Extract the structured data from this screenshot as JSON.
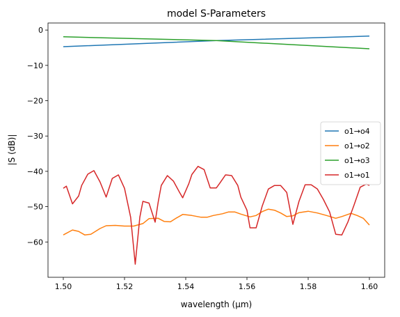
{
  "chart_data": {
    "type": "line",
    "title": "model S-Parameters",
    "xlabel": "wavelength (µm)",
    "ylabel": "|S (dB)|",
    "xlim": [
      1.495,
      1.605
    ],
    "ylim": [
      -70,
      2
    ],
    "xticks": [
      1.5,
      1.52,
      1.54,
      1.56,
      1.58,
      1.6
    ],
    "xtick_labels": [
      "1.50",
      "1.52",
      "1.54",
      "1.56",
      "1.58",
      "1.60"
    ],
    "yticks": [
      0,
      -10,
      -20,
      -30,
      -40,
      -50,
      -60
    ],
    "ytick_labels": [
      "0",
      "−10",
      "−20",
      "−30",
      "−40",
      "−50",
      "−60"
    ],
    "grid": false,
    "legend": "center-right",
    "series": [
      {
        "name": "o1→o4",
        "color": "#1f77b4",
        "points": [
          [
            1.5,
            -4.7
          ],
          [
            1.55,
            -3.0
          ],
          [
            1.6,
            -1.7
          ]
        ]
      },
      {
        "name": "o1→o2",
        "color": "#ff7f0e",
        "points": [
          [
            1.5,
            -58.0
          ],
          [
            1.503,
            -56.6
          ],
          [
            1.505,
            -57.0
          ],
          [
            1.507,
            -58.0
          ],
          [
            1.509,
            -57.8
          ],
          [
            1.512,
            -56.2
          ],
          [
            1.514,
            -55.4
          ],
          [
            1.517,
            -55.3
          ],
          [
            1.52,
            -55.5
          ],
          [
            1.523,
            -55.5
          ],
          [
            1.526,
            -54.8
          ],
          [
            1.528,
            -53.4
          ],
          [
            1.531,
            -53.3
          ],
          [
            1.533,
            -54.2
          ],
          [
            1.535,
            -54.3
          ],
          [
            1.537,
            -53.2
          ],
          [
            1.539,
            -52.2
          ],
          [
            1.542,
            -52.5
          ],
          [
            1.545,
            -53.0
          ],
          [
            1.547,
            -53.0
          ],
          [
            1.549,
            -52.5
          ],
          [
            1.552,
            -52.0
          ],
          [
            1.554,
            -51.5
          ],
          [
            1.556,
            -51.5
          ],
          [
            1.558,
            -52.1
          ],
          [
            1.561,
            -52.9
          ],
          [
            1.563,
            -52.5
          ],
          [
            1.565,
            -51.4
          ],
          [
            1.567,
            -50.7
          ],
          [
            1.569,
            -51.0
          ],
          [
            1.571,
            -51.8
          ],
          [
            1.573,
            -52.8
          ],
          [
            1.575,
            -52.6
          ],
          [
            1.577,
            -51.7
          ],
          [
            1.58,
            -51.3
          ],
          [
            1.583,
            -51.8
          ],
          [
            1.586,
            -52.5
          ],
          [
            1.589,
            -53.3
          ],
          [
            1.591,
            -52.8
          ],
          [
            1.594,
            -51.9
          ],
          [
            1.596,
            -52.5
          ],
          [
            1.598,
            -53.3
          ],
          [
            1.6,
            -55.2
          ]
        ]
      },
      {
        "name": "o1→o3",
        "color": "#2ca02c",
        "points": [
          [
            1.5,
            -1.9
          ],
          [
            1.55,
            -3.0
          ],
          [
            1.6,
            -5.3
          ]
        ]
      },
      {
        "name": "o1→o1",
        "color": "#d62728",
        "points": [
          [
            1.5,
            -44.8
          ],
          [
            1.501,
            -44.2
          ],
          [
            1.503,
            -49.2
          ],
          [
            1.505,
            -47.0
          ],
          [
            1.506,
            -44.0
          ],
          [
            1.508,
            -40.8
          ],
          [
            1.51,
            -39.8
          ],
          [
            1.512,
            -43.0
          ],
          [
            1.514,
            -47.3
          ],
          [
            1.516,
            -42.0
          ],
          [
            1.518,
            -41.0
          ],
          [
            1.52,
            -44.8
          ],
          [
            1.522,
            -53.0
          ],
          [
            1.5235,
            -66.3
          ],
          [
            1.525,
            -53.0
          ],
          [
            1.526,
            -48.5
          ],
          [
            1.528,
            -49.0
          ],
          [
            1.53,
            -54.4
          ],
          [
            1.531,
            -48.7
          ],
          [
            1.532,
            -44.0
          ],
          [
            1.534,
            -41.2
          ],
          [
            1.536,
            -42.8
          ],
          [
            1.538,
            -46.0
          ],
          [
            1.539,
            -47.5
          ],
          [
            1.541,
            -43.5
          ],
          [
            1.542,
            -40.9
          ],
          [
            1.544,
            -38.6
          ],
          [
            1.546,
            -39.5
          ],
          [
            1.548,
            -44.7
          ],
          [
            1.55,
            -44.7
          ],
          [
            1.551,
            -43.5
          ],
          [
            1.553,
            -41.0
          ],
          [
            1.555,
            -41.2
          ],
          [
            1.557,
            -44.0
          ],
          [
            1.558,
            -47.3
          ],
          [
            1.56,
            -51.0
          ],
          [
            1.561,
            -56.0
          ],
          [
            1.563,
            -56.0
          ],
          [
            1.565,
            -49.8
          ],
          [
            1.567,
            -45.0
          ],
          [
            1.569,
            -44.0
          ],
          [
            1.571,
            -44.0
          ],
          [
            1.573,
            -46.0
          ],
          [
            1.575,
            -55.0
          ],
          [
            1.577,
            -48.5
          ],
          [
            1.579,
            -43.8
          ],
          [
            1.581,
            -43.8
          ],
          [
            1.583,
            -45.0
          ],
          [
            1.585,
            -48.0
          ],
          [
            1.587,
            -51.5
          ],
          [
            1.589,
            -57.8
          ],
          [
            1.591,
            -58.0
          ],
          [
            1.593,
            -54.3
          ],
          [
            1.595,
            -49.5
          ],
          [
            1.597,
            -44.5
          ],
          [
            1.599,
            -43.6
          ],
          [
            1.6,
            -44.0
          ]
        ]
      }
    ]
  }
}
